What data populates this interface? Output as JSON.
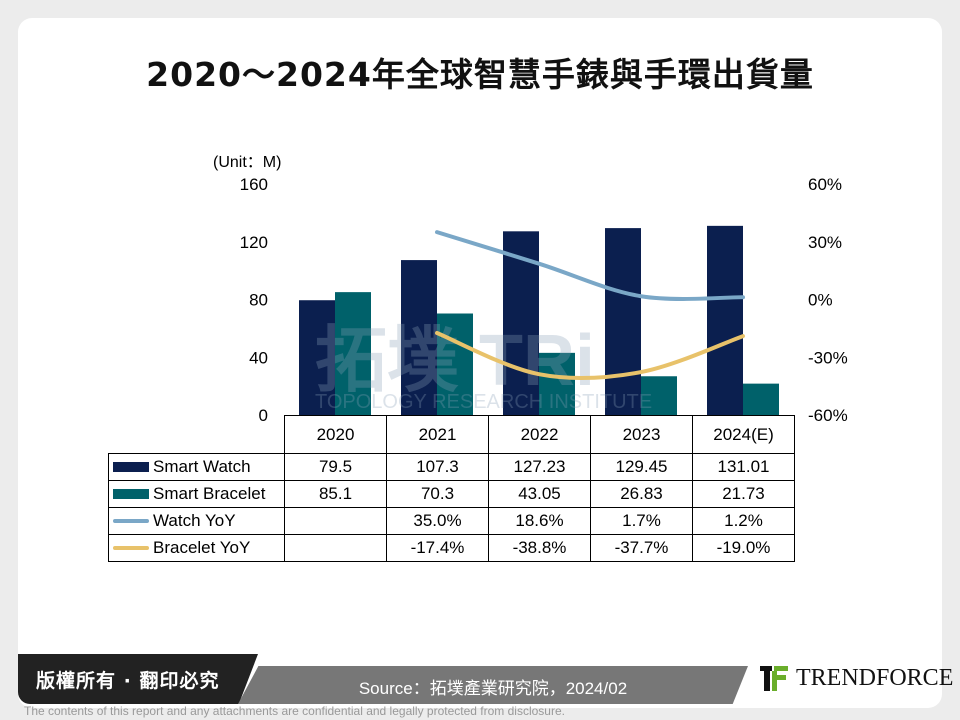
{
  "title": "2020～2024年全球智慧手錶與手環出貨量",
  "chart_data": {
    "type": "bar",
    "unit_label": "(Unit：M)",
    "categories": [
      "2020",
      "2021",
      "2022",
      "2023",
      "2024(E)"
    ],
    "y_left": {
      "range": [
        0,
        160
      ],
      "ticks": [
        "0",
        "40",
        "80",
        "120",
        "160"
      ]
    },
    "y_right": {
      "range": [
        -60,
        60
      ],
      "ticks": [
        "-60%",
        "-30%",
        "0%",
        "30%",
        "60%"
      ]
    },
    "series": [
      {
        "name": "Smart Watch",
        "kind": "bar",
        "axis": "left",
        "color": "#0b1f4f",
        "values": [
          79.5,
          107.3,
          127.23,
          129.45,
          131.01
        ],
        "labels": [
          "79.5",
          "107.3",
          "127.23",
          "129.45",
          "131.01"
        ]
      },
      {
        "name": "Smart Bracelet",
        "kind": "bar",
        "axis": "left",
        "color": "#00616a",
        "values": [
          85.1,
          70.3,
          43.05,
          26.83,
          21.73
        ],
        "labels": [
          "85.1",
          "70.3",
          "43.05",
          "26.83",
          "21.73"
        ]
      },
      {
        "name": "Watch YoY",
        "kind": "line",
        "axis": "right",
        "color": "#7aa7c7",
        "values": [
          null,
          35.0,
          18.6,
          1.7,
          1.2
        ],
        "labels": [
          "",
          "35.0%",
          "18.6%",
          "1.7%",
          "1.2%"
        ]
      },
      {
        "name": "Bracelet YoY",
        "kind": "line",
        "axis": "right",
        "color": "#e8c26a",
        "values": [
          null,
          -17.4,
          -38.8,
          -37.7,
          -19.0
        ],
        "labels": [
          "",
          "-17.4%",
          "-38.8%",
          "-37.7%",
          "-19.0%"
        ]
      }
    ],
    "watermark": "拓墣 TRi TOPOLOGY RESEARCH INSTITUTE"
  },
  "footer": {
    "copyright": "版權所有 · 翻印必究",
    "source": "Source：拓墣產業研究院，2024/02",
    "brand": "TRENDFORCE",
    "disclaimer": "The contents of this report and any attachments are confidential and legally protected from disclosure."
  }
}
